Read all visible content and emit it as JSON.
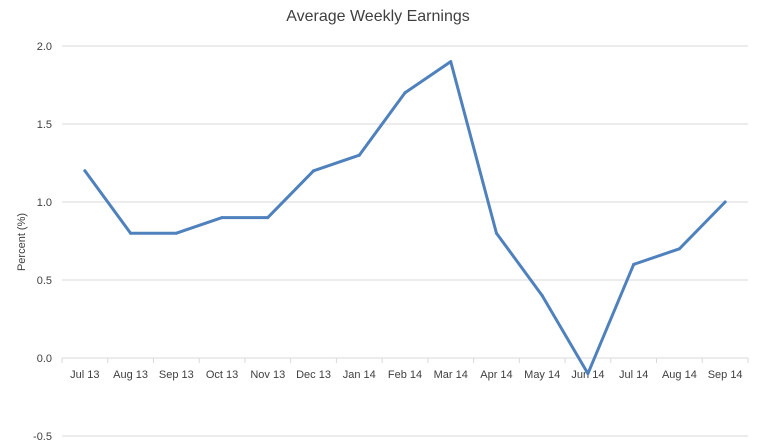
{
  "chart_data": {
    "type": "line",
    "title": "Average Weekly Earnings",
    "xlabel": "",
    "ylabel": "Percent (%)",
    "categories": [
      "Jul 13",
      "Aug 13",
      "Sep 13",
      "Oct 13",
      "Nov 13",
      "Dec 13",
      "Jan 14",
      "Feb 14",
      "Mar 14",
      "Apr 14",
      "May 14",
      "Jun 14",
      "Jul 14",
      "Aug 14",
      "Sep 14"
    ],
    "series": [
      {
        "values": [
          1.2,
          0.8,
          0.8,
          0.9,
          0.9,
          1.2,
          1.3,
          1.7,
          1.9,
          0.8,
          0.4,
          -0.1,
          0.6,
          0.7,
          1.0
        ],
        "color": "#4f81bd"
      }
    ],
    "ylim": [
      -0.5,
      2.0
    ],
    "yticks": [
      "-0.5",
      "0.0",
      "0.5",
      "1.0",
      "1.5",
      "2.0"
    ],
    "grid": true,
    "legend": "none"
  }
}
